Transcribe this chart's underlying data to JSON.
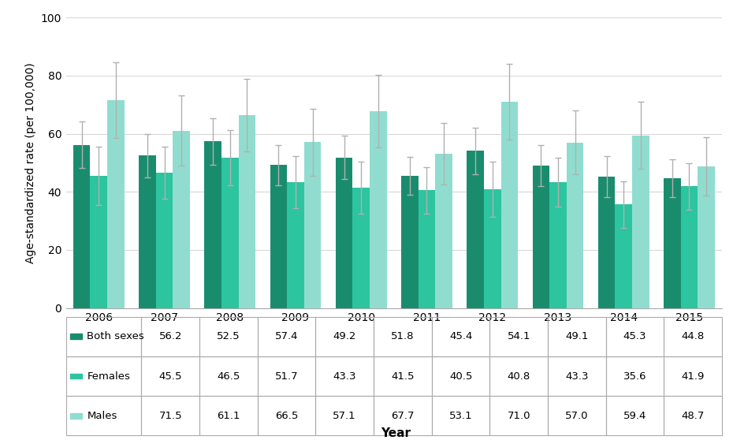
{
  "years": [
    2006,
    2007,
    2008,
    2009,
    2010,
    2011,
    2012,
    2013,
    2014,
    2015
  ],
  "both_sexes": [
    56.2,
    52.5,
    57.4,
    49.2,
    51.8,
    45.4,
    54.1,
    49.1,
    45.3,
    44.8
  ],
  "females": [
    45.5,
    46.5,
    51.7,
    43.3,
    41.5,
    40.5,
    40.8,
    43.3,
    35.6,
    41.9
  ],
  "males": [
    71.5,
    61.1,
    66.5,
    57.1,
    67.7,
    53.1,
    71.0,
    57.0,
    59.4,
    48.7
  ],
  "both_sexes_err_low": [
    8.0,
    7.5,
    8.0,
    7.0,
    7.5,
    6.5,
    8.0,
    7.0,
    7.0,
    6.5
  ],
  "both_sexes_err_high": [
    8.0,
    7.5,
    8.0,
    7.0,
    7.5,
    6.5,
    8.0,
    7.0,
    7.0,
    6.5
  ],
  "females_err_low": [
    10.0,
    9.0,
    9.5,
    9.0,
    9.0,
    8.0,
    9.5,
    8.5,
    8.0,
    8.0
  ],
  "females_err_high": [
    10.0,
    9.0,
    9.5,
    9.0,
    9.0,
    8.0,
    9.5,
    8.5,
    8.0,
    8.0
  ],
  "males_err_low": [
    13.0,
    12.0,
    12.5,
    11.5,
    12.5,
    10.5,
    13.0,
    11.0,
    11.5,
    10.0
  ],
  "males_err_high": [
    13.0,
    12.0,
    12.5,
    11.5,
    12.5,
    10.5,
    13.0,
    11.0,
    11.5,
    10.0
  ],
  "color_both": "#1a8c6e",
  "color_females": "#2dc4a0",
  "color_males": "#90ddd0",
  "color_err": "#b0b0b0",
  "ylabel": "Age-standardized rate (per 100,000)",
  "xlabel": "Year",
  "ylim": [
    0,
    100
  ],
  "yticks": [
    0,
    20,
    40,
    60,
    80,
    100
  ],
  "bar_width": 0.26,
  "table_row_labels": [
    "Both sexes",
    "Females",
    "Males"
  ]
}
